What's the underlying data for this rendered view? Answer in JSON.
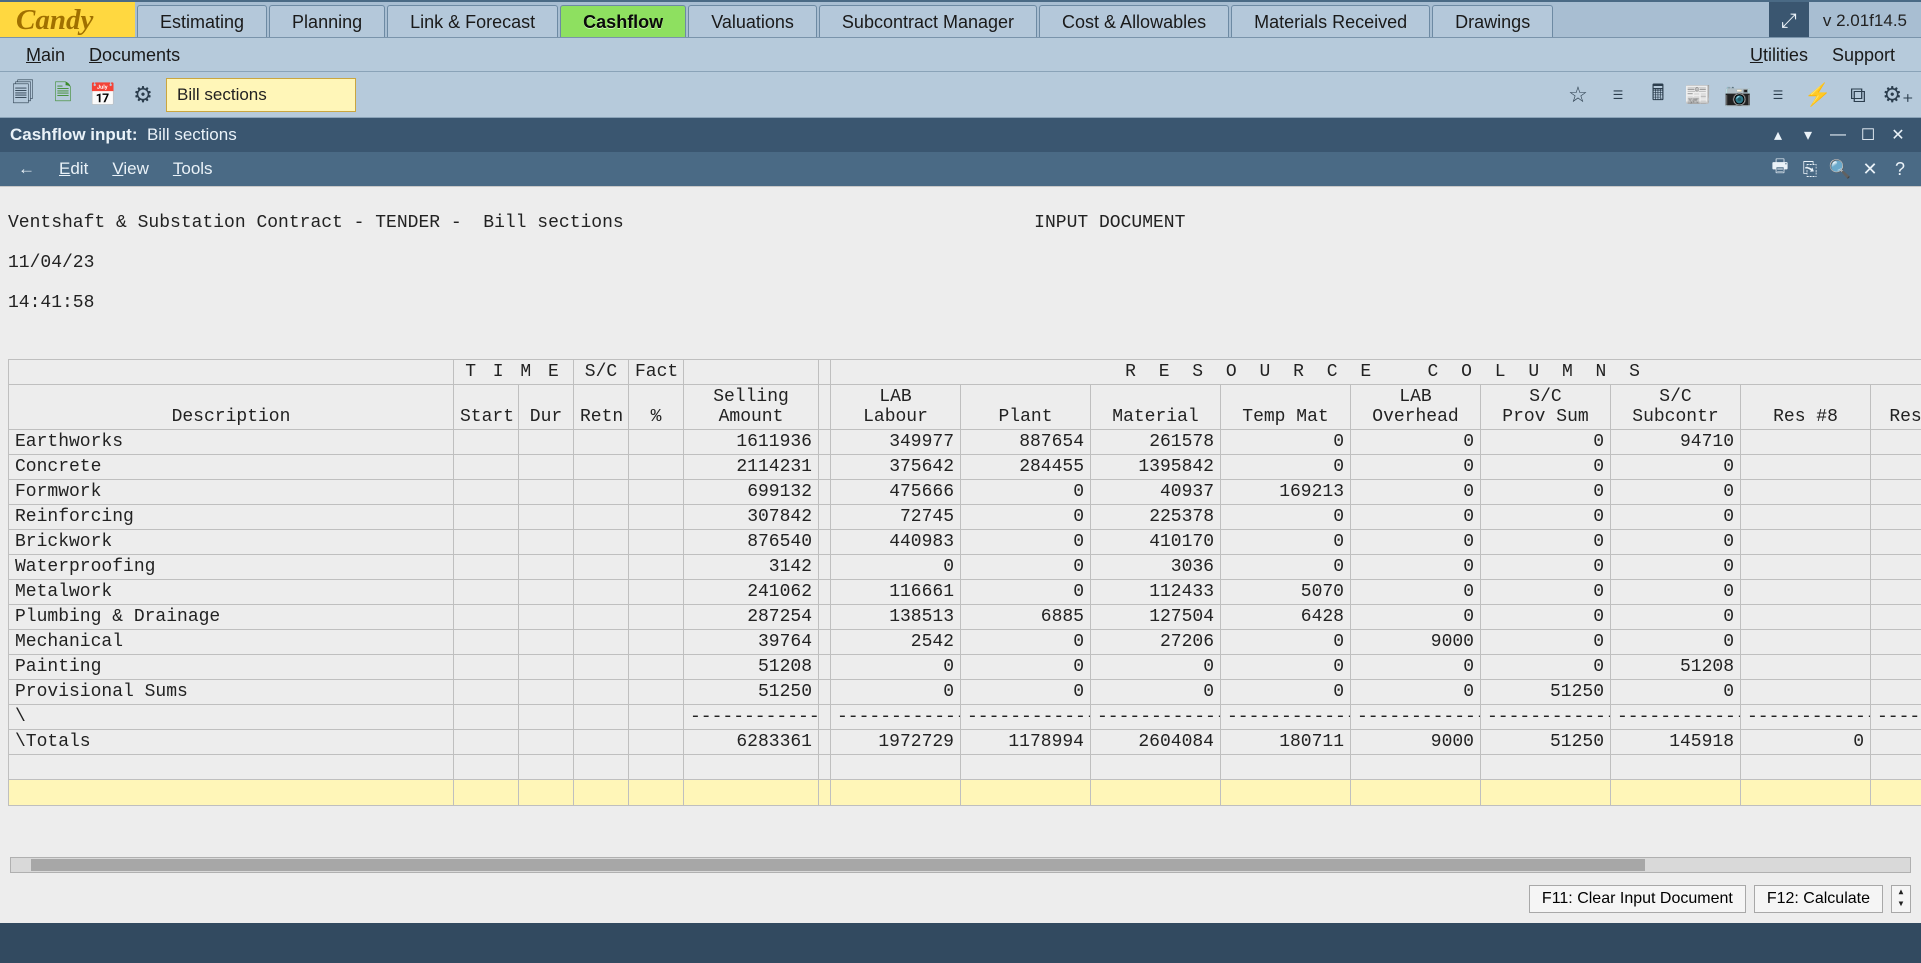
{
  "brand": "Candy",
  "version": "v 2.01f14.5",
  "ribbon_tabs": [
    {
      "label": "Estimating",
      "active": false
    },
    {
      "label": "Planning",
      "active": false
    },
    {
      "label": "Link & Forecast",
      "active": false
    },
    {
      "label": "Cashflow",
      "active": true
    },
    {
      "label": "Valuations",
      "active": false
    },
    {
      "label": "Subcontract Manager",
      "active": false
    },
    {
      "label": "Cost & Allowables",
      "active": false
    },
    {
      "label": "Materials Received",
      "active": false
    },
    {
      "label": "Drawings",
      "active": false
    }
  ],
  "menubar": {
    "main": "Main",
    "documents": "Documents",
    "utilities": "Utilities",
    "support": "Support"
  },
  "breadcrumb": "Bill sections",
  "doc_title": {
    "prefix": "Cashflow input:",
    "name": "Bill sections"
  },
  "doc_menu": {
    "edit": "Edit",
    "view": "View",
    "tools": "Tools"
  },
  "doc_header": {
    "line1_left": "Ventshaft & Substation Contract - TENDER -  Bill sections",
    "line1_right": "INPUT DOCUMENT",
    "date": "11/04/23",
    "time": "14:41:58"
  },
  "columns": {
    "time_group": "T I M E",
    "sc_group": "S/C",
    "fact": "Fact",
    "resource_group": "R E S O U R C E   C O L U M N S",
    "description": "Description",
    "start": "Start",
    "dur": "Dur",
    "retn": "Retn",
    "pct": "%",
    "selling": "Selling\nAmount",
    "lab_labour": "LAB\nLabour",
    "plant": "Plant",
    "material": "Material",
    "temp_mat": "Temp Mat",
    "lab_overhead": "LAB\nOverhead",
    "sc_provsum": "S/C\nProv Sum",
    "sc_subcontr": "S/C\nSubcontr",
    "res8": "Res #8",
    "res": "Res"
  },
  "rows": [
    {
      "desc": "Earthworks",
      "sell": 1611936,
      "lab": 349977,
      "plant": 887654,
      "mat": 261578,
      "tmat": 0,
      "ovh": 0,
      "prov": 0,
      "subc": 94710,
      "r8": ""
    },
    {
      "desc": "Concrete",
      "sell": 2114231,
      "lab": 375642,
      "plant": 284455,
      "mat": 1395842,
      "tmat": 0,
      "ovh": 0,
      "prov": 0,
      "subc": 0,
      "r8": ""
    },
    {
      "desc": "Formwork",
      "sell": 699132,
      "lab": 475666,
      "plant": 0,
      "mat": 40937,
      "tmat": 169213,
      "ovh": 0,
      "prov": 0,
      "subc": 0,
      "r8": ""
    },
    {
      "desc": "Reinforcing",
      "sell": 307842,
      "lab": 72745,
      "plant": 0,
      "mat": 225378,
      "tmat": 0,
      "ovh": 0,
      "prov": 0,
      "subc": 0,
      "r8": ""
    },
    {
      "desc": "Brickwork",
      "sell": 876540,
      "lab": 440983,
      "plant": 0,
      "mat": 410170,
      "tmat": 0,
      "ovh": 0,
      "prov": 0,
      "subc": 0,
      "r8": ""
    },
    {
      "desc": "Waterproofing",
      "sell": 3142,
      "lab": 0,
      "plant": 0,
      "mat": 3036,
      "tmat": 0,
      "ovh": 0,
      "prov": 0,
      "subc": 0,
      "r8": ""
    },
    {
      "desc": "Metalwork",
      "sell": 241062,
      "lab": 116661,
      "plant": 0,
      "mat": 112433,
      "tmat": 5070,
      "ovh": 0,
      "prov": 0,
      "subc": 0,
      "r8": ""
    },
    {
      "desc": "Plumbing & Drainage",
      "sell": 287254,
      "lab": 138513,
      "plant": 6885,
      "mat": 127504,
      "tmat": 6428,
      "ovh": 0,
      "prov": 0,
      "subc": 0,
      "r8": ""
    },
    {
      "desc": "Mechanical",
      "sell": 39764,
      "lab": 2542,
      "plant": 0,
      "mat": 27206,
      "tmat": 0,
      "ovh": 9000,
      "prov": 0,
      "subc": 0,
      "r8": ""
    },
    {
      "desc": "Painting",
      "sell": 51208,
      "lab": 0,
      "plant": 0,
      "mat": 0,
      "tmat": 0,
      "ovh": 0,
      "prov": 0,
      "subc": 51208,
      "r8": ""
    },
    {
      "desc": "Provisional Sums",
      "sell": 51250,
      "lab": 0,
      "plant": 0,
      "mat": 0,
      "tmat": 0,
      "ovh": 0,
      "prov": 51250,
      "subc": 0,
      "r8": ""
    }
  ],
  "totals": {
    "desc": "\\Totals",
    "sell": 6283361,
    "lab": 1972729,
    "plant": 1178994,
    "mat": 2604084,
    "tmat": 180711,
    "ovh": 9000,
    "prov": 51250,
    "subc": 145918,
    "r8": 0
  },
  "totals_prefix": "\\",
  "footer": {
    "f11": "F11: Clear Input Document",
    "f12": "F12: Calculate"
  },
  "colors": {
    "frame": "#324a60",
    "ribbon_bg": "#a8bed2",
    "brand_bg": "#ffd840",
    "active_tab_bg": "#8ee060",
    "doc_titlebar_bg": "#3a5670",
    "doc_menu_bg": "#4a6a85",
    "doc_body_bg": "#ededed",
    "highlight_row_bg": "#fff6b8",
    "grid_border": "#bfbfbf"
  }
}
